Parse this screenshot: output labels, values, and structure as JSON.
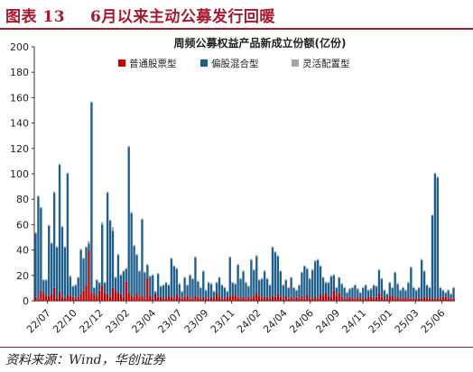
{
  "header": {
    "label": "图表 13",
    "title": "6月以来主动公募发行回暖"
  },
  "source": "资料来源：Wind，华创证券",
  "colors": {
    "accent": "#a8192d",
    "mixed": "#1f5f8b",
    "stock": "#c00000",
    "flex": "#a6a6a6"
  },
  "chart_data": {
    "type": "bar",
    "stacked": true,
    "title": "周频公募权益产品新成立份额(亿份)",
    "xlabel": "",
    "ylabel": "",
    "ylim": [
      0,
      200
    ],
    "yticks": [
      0,
      20,
      40,
      60,
      80,
      100,
      120,
      140,
      160,
      180,
      200
    ],
    "grid": false,
    "legend_position": "top",
    "x_tick_labels": [
      "22/07",
      "22/10",
      "22/12",
      "23/02",
      "23/04",
      "23/07",
      "23/09",
      "23/11",
      "24/02",
      "24/04",
      "24/06",
      "24/09",
      "24/11",
      "25/01",
      "25/03",
      "25/06"
    ],
    "series": [
      {
        "name": "普通股票型",
        "color": "#c00000",
        "values": [
          3,
          2,
          8,
          6,
          4,
          4,
          5,
          10,
          2,
          7,
          3,
          2,
          5,
          4,
          3,
          2,
          3,
          5,
          8,
          12,
          40,
          6,
          5,
          4,
          8,
          12,
          6,
          5,
          3,
          10,
          8,
          6,
          5,
          3,
          15,
          6,
          4,
          3,
          6,
          3,
          4,
          2,
          18,
          4,
          2,
          5,
          3,
          3,
          2,
          2,
          4,
          3,
          2,
          5,
          3,
          2,
          3,
          4,
          2,
          2,
          4,
          3,
          2,
          3,
          2,
          2,
          3,
          2,
          6,
          3,
          2,
          2,
          3,
          4,
          4,
          5,
          3,
          2,
          3,
          2,
          3,
          2,
          4,
          7,
          4,
          2,
          3,
          3,
          2,
          4,
          3,
          5,
          3,
          2,
          4,
          2,
          3,
          2,
          3,
          2,
          4,
          2,
          5,
          2,
          2,
          3,
          2,
          5,
          4,
          6,
          4,
          3,
          8,
          4,
          6,
          3,
          2,
          2,
          3,
          2,
          2,
          3,
          2,
          2,
          2,
          3,
          3,
          2,
          3,
          6,
          3,
          2,
          2,
          4,
          4,
          2,
          3,
          2,
          2,
          3,
          2,
          2,
          2,
          2,
          2,
          2,
          3,
          2,
          2,
          2,
          2,
          2,
          2,
          3,
          3,
          2,
          2,
          2
        ]
      },
      {
        "name": "偏股混合型",
        "color": "#1f5f8b",
        "values": [
          50,
          80,
          65,
          10,
          12,
          55,
          40,
          75,
          40,
          100,
          55,
          40,
          95,
          15,
          8,
          10,
          15,
          35,
          25,
          30,
          5,
          150,
          5,
          12,
          6,
          48,
          8,
          80,
          60,
          45,
          10,
          30,
          15,
          20,
          10,
          115,
          65,
          40,
          30,
          20,
          60,
          20,
          10,
          15,
          18,
          2,
          18,
          8,
          10,
          12,
          8,
          30,
          25,
          20,
          10,
          5,
          15,
          8,
          18,
          15,
          30,
          12,
          8,
          20,
          6,
          12,
          10,
          5,
          8,
          15,
          10,
          8,
          4,
          30,
          10,
          8,
          25,
          15,
          20,
          12,
          8,
          30,
          20,
          28,
          12,
          15,
          20,
          14,
          10,
          38,
          35,
          30,
          20,
          10,
          12,
          8,
          15,
          8,
          5,
          10,
          18,
          25,
          20,
          15,
          22,
          28,
          30,
          22,
          14,
          8,
          10,
          16,
          12,
          6,
          12,
          10,
          8,
          4,
          6,
          8,
          10,
          6,
          4,
          8,
          10,
          5,
          6,
          10,
          8,
          18,
          14,
          6,
          3,
          10,
          6,
          20,
          10,
          6,
          8,
          5,
          12,
          24,
          8,
          6,
          8,
          30,
          20,
          10,
          8,
          65,
          98,
          95,
          8,
          5,
          3,
          6,
          3,
          8
        ]
      },
      {
        "name": "灵活配置型",
        "color": "#a6a6a6",
        "values": [
          1,
          1,
          1,
          1,
          1,
          1,
          1,
          1,
          1,
          1,
          1,
          1,
          1,
          1,
          1,
          1,
          1,
          1,
          1,
          1,
          2,
          1,
          1,
          1,
          1,
          2,
          1,
          1,
          1,
          3,
          1,
          1,
          1,
          1,
          1,
          1,
          1,
          1,
          1,
          1,
          1,
          1,
          1,
          1,
          1,
          1,
          1,
          1,
          1,
          1,
          1,
          1,
          1,
          1,
          1,
          1,
          1,
          1,
          1,
          1,
          1,
          1,
          1,
          1,
          1,
          1,
          1,
          1,
          1,
          1,
          1,
          1,
          1,
          1,
          1,
          1,
          1,
          1,
          1,
          1,
          1,
          1,
          1,
          1,
          1,
          1,
          1,
          1,
          1,
          1,
          1,
          1,
          1,
          1,
          1,
          1,
          1,
          1,
          1,
          1,
          1,
          1,
          1,
          1,
          1,
          1,
          1,
          1,
          1,
          1,
          1,
          1,
          1,
          1,
          1,
          1,
          1,
          1,
          1,
          1,
          1,
          1,
          1,
          1,
          1,
          1,
          1,
          1,
          1,
          1,
          1,
          1,
          1,
          1,
          1,
          1,
          1,
          1,
          1,
          1,
          1,
          1,
          1,
          1,
          1,
          1,
          1,
          1,
          1,
          1,
          1,
          1,
          1,
          1,
          1,
          1,
          1,
          1
        ]
      }
    ]
  }
}
